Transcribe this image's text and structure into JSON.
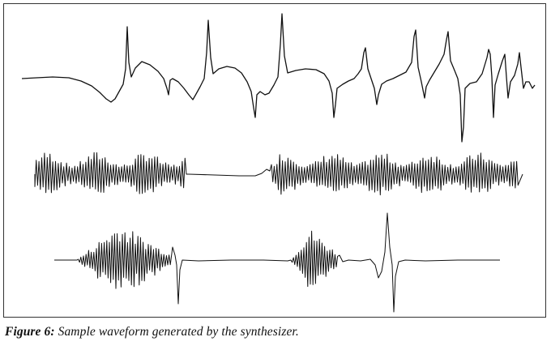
{
  "figure": {
    "caption_label": "Figure 6:",
    "caption_text": "Sample waveform generated by the synthesizer."
  },
  "colors": {
    "ink": "#111111",
    "frame": "#333333",
    "paper": "#ffffff"
  }
}
